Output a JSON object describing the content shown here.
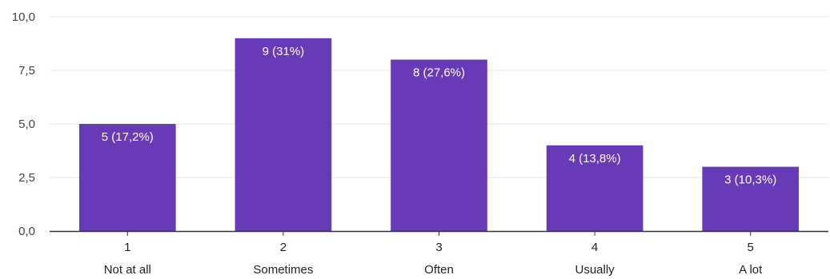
{
  "chart_data": {
    "type": "bar",
    "categories": [
      "1",
      "2",
      "3",
      "4",
      "5"
    ],
    "category_labels": [
      "Not at all",
      "Sometimes",
      "Often",
      "Usually",
      "A lot"
    ],
    "values": [
      5,
      9,
      8,
      4,
      3
    ],
    "data_labels": [
      "5 (17,2%)",
      "9 (31%)",
      "8 (27,6%)",
      "4 (13,8%)",
      "3 (10,3%)"
    ],
    "ylim": [
      0,
      10
    ],
    "yticks": [
      0,
      2.5,
      5,
      7.5,
      10
    ],
    "ytick_labels": [
      "0,0",
      "2,5",
      "5,0",
      "7,5",
      "10,0"
    ],
    "grid": true,
    "bar_color": "#673AB7",
    "grid_color": "#E6E6E6",
    "axis_color": "#333333"
  }
}
